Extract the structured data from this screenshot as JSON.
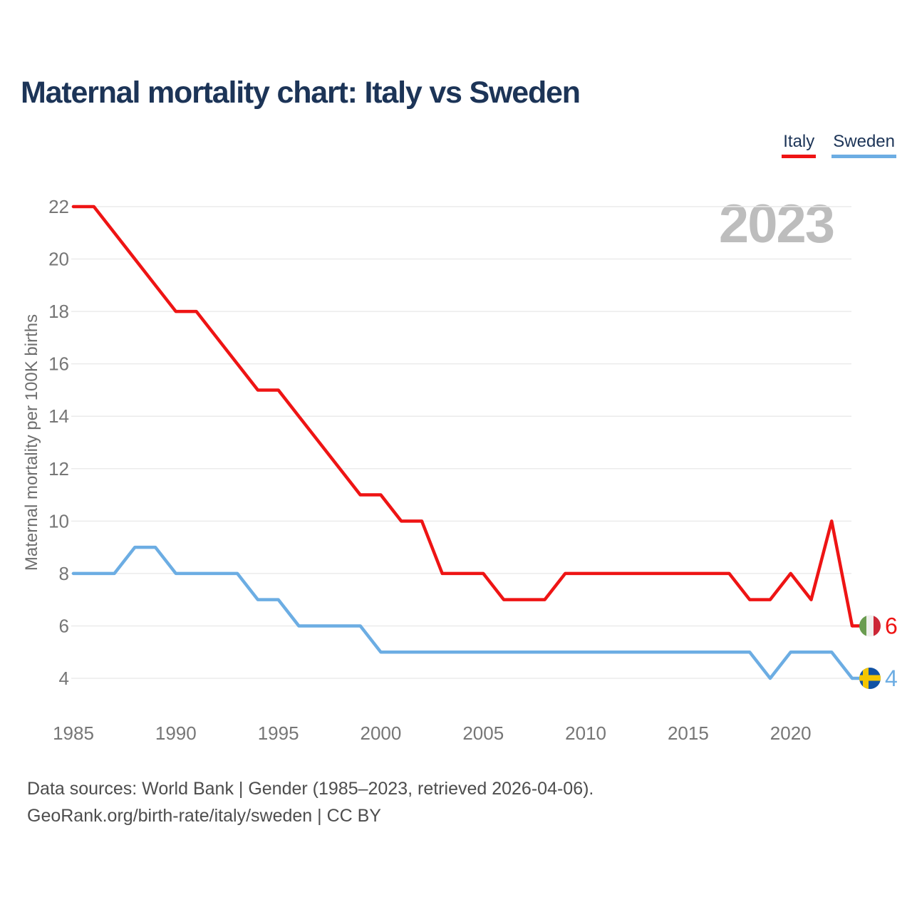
{
  "header": {
    "title": "Maternal mortality chart: Italy vs Sweden"
  },
  "legend": {
    "items": [
      {
        "label": "Italy",
        "color": "#ee1414"
      },
      {
        "label": "Sweden",
        "color": "#6cade3"
      }
    ]
  },
  "chart_data": {
    "type": "line",
    "title": "Maternal mortality chart: Italy vs Sweden",
    "xlabel": "",
    "ylabel": "Maternal mortality per 100K births",
    "watermark": "2023",
    "grid": "horizontal",
    "legend_position": "top-right",
    "ylim": [
      4,
      22
    ],
    "y_ticks": [
      4,
      6,
      8,
      10,
      12,
      14,
      16,
      18,
      20,
      22
    ],
    "x_ticks": [
      1985,
      1990,
      1995,
      2000,
      2005,
      2010,
      2015,
      2020
    ],
    "x": [
      1985,
      1986,
      1987,
      1988,
      1989,
      1990,
      1991,
      1992,
      1993,
      1994,
      1995,
      1996,
      1997,
      1998,
      1999,
      2000,
      2001,
      2002,
      2003,
      2004,
      2005,
      2006,
      2007,
      2008,
      2009,
      2010,
      2011,
      2012,
      2013,
      2014,
      2015,
      2016,
      2017,
      2018,
      2019,
      2020,
      2021,
      2022,
      2023
    ],
    "series": [
      {
        "name": "Italy",
        "color": "#ee1414",
        "end_label": "6",
        "flag": "italy",
        "values": [
          22,
          22,
          21,
          20,
          19,
          18,
          18,
          17,
          16,
          15,
          15,
          14,
          13,
          12,
          11,
          11,
          10,
          10,
          8,
          8,
          8,
          7,
          7,
          7,
          8,
          8,
          8,
          8,
          8,
          8,
          8,
          8,
          8,
          7,
          7,
          8,
          7,
          10,
          6
        ]
      },
      {
        "name": "Sweden",
        "color": "#6cade3",
        "end_label": "4",
        "flag": "sweden",
        "values": [
          8,
          8,
          8,
          9,
          9,
          8,
          8,
          8,
          8,
          7,
          7,
          6,
          6,
          6,
          6,
          5,
          5,
          5,
          5,
          5,
          5,
          5,
          5,
          5,
          5,
          5,
          5,
          5,
          5,
          5,
          5,
          5,
          5,
          5,
          4,
          5,
          5,
          5,
          4
        ]
      }
    ],
    "flag_colors": {
      "italy": {
        "stripes": [
          "#6a9c50",
          "#f0f0ee",
          "#cc2736"
        ]
      },
      "sweden": {
        "bg": "#1152a4",
        "cross": "#f5c600"
      }
    }
  },
  "footer": {
    "line1": "Data sources: World Bank | Gender (1985–2023, retrieved 2026-04-06).",
    "line2": "GeoRank.org/birth-rate/italy/sweden | CC BY"
  }
}
